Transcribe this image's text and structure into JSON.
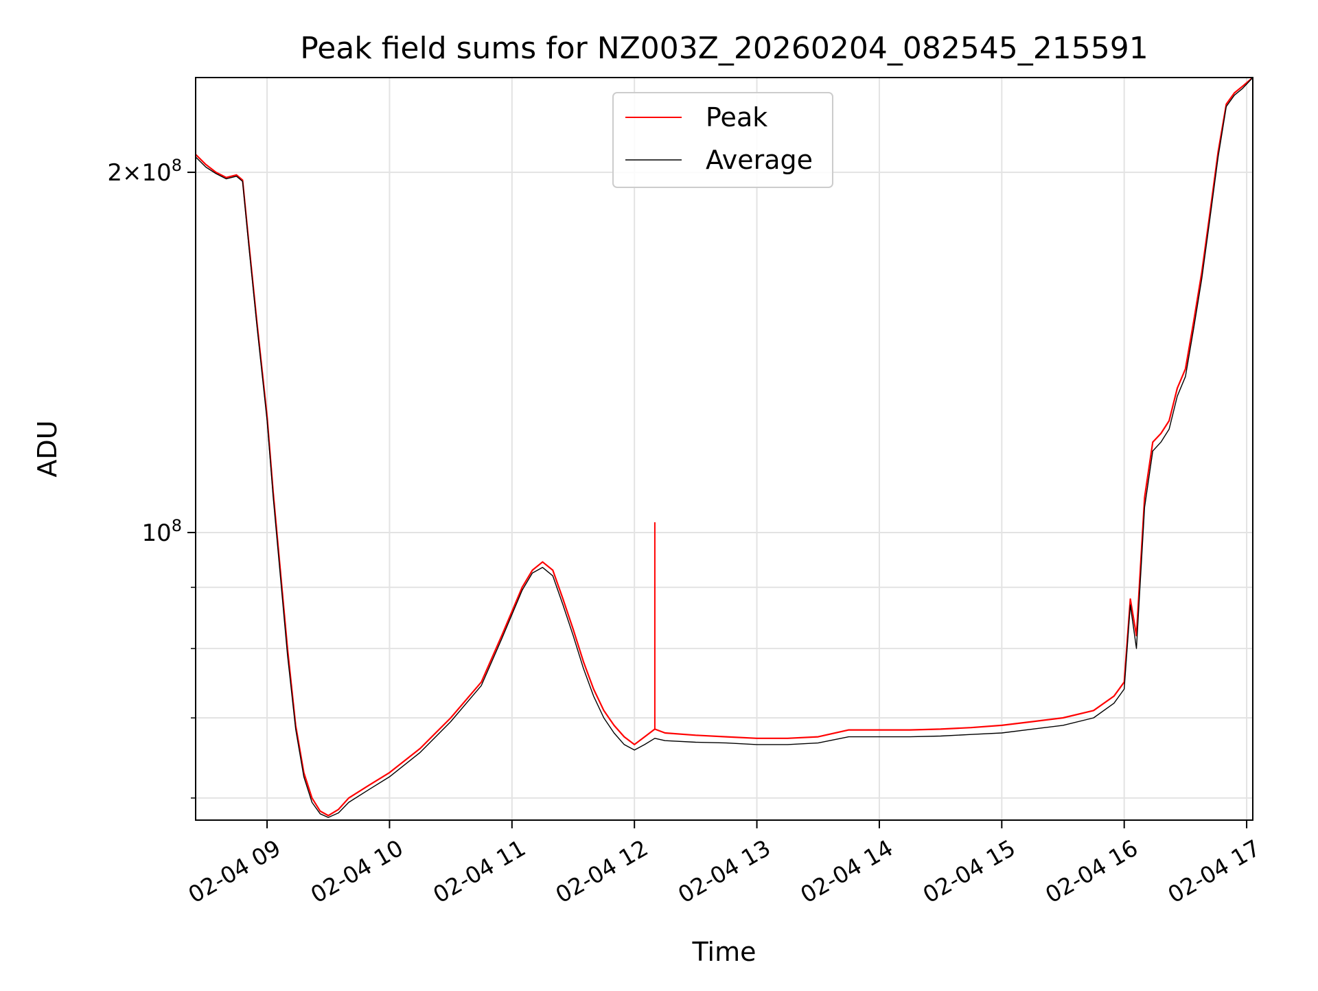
{
  "chart_data": {
    "type": "line",
    "title": "Peak field sums for NZ003Z_20260204_082545_215591",
    "xlabel": "Time",
    "ylabel": "ADU",
    "yscale": "log",
    "grid": true,
    "legend_position": "upper center",
    "xlim": [
      "2026-02-04 08:25",
      "2026-02-04 17:03"
    ],
    "ylim": [
      57500000,
      240000000
    ],
    "x_ticks": [
      {
        "value": "2026-02-04 09:00",
        "label": "02-04 09"
      },
      {
        "value": "2026-02-04 10:00",
        "label": "02-04 10"
      },
      {
        "value": "2026-02-04 11:00",
        "label": "02-04 11"
      },
      {
        "value": "2026-02-04 12:00",
        "label": "02-04 12"
      },
      {
        "value": "2026-02-04 13:00",
        "label": "02-04 13"
      },
      {
        "value": "2026-02-04 14:00",
        "label": "02-04 14"
      },
      {
        "value": "2026-02-04 15:00",
        "label": "02-04 15"
      },
      {
        "value": "2026-02-04 16:00",
        "label": "02-04 16"
      },
      {
        "value": "2026-02-04 17:00",
        "label": "02-04 17"
      }
    ],
    "y_major_ticks": [
      {
        "value": 100000000,
        "base": "10",
        "exp": "8",
        "coef": ""
      },
      {
        "value": 200000000,
        "base": "10",
        "exp": "8",
        "coef": "2×"
      }
    ],
    "y_minor_ticks": [
      60000000,
      70000000,
      80000000,
      90000000
    ],
    "series": [
      {
        "name": "Peak",
        "color": "#ff0000",
        "x": [
          "2026-02-04 08:25",
          "2026-02-04 08:30",
          "2026-02-04 08:35",
          "2026-02-04 08:40",
          "2026-02-04 08:45",
          "2026-02-04 08:48",
          "2026-02-04 08:51",
          "2026-02-04 08:55",
          "2026-02-04 09:00",
          "2026-02-04 09:03",
          "2026-02-04 09:06",
          "2026-02-04 09:10",
          "2026-02-04 09:14",
          "2026-02-04 09:18",
          "2026-02-04 09:22",
          "2026-02-04 09:26",
          "2026-02-04 09:30",
          "2026-02-04 09:35",
          "2026-02-04 09:40",
          "2026-02-04 09:50",
          "2026-02-04 10:00",
          "2026-02-04 10:15",
          "2026-02-04 10:30",
          "2026-02-04 10:45",
          "2026-02-04 10:55",
          "2026-02-04 11:05",
          "2026-02-04 11:10",
          "2026-02-04 11:15",
          "2026-02-04 11:20",
          "2026-02-04 11:25",
          "2026-02-04 11:30",
          "2026-02-04 11:35",
          "2026-02-04 11:40",
          "2026-02-04 11:45",
          "2026-02-04 11:50",
          "2026-02-04 11:55",
          "2026-02-04 12:00",
          "2026-02-04 12:05",
          "2026-02-04 12:10",
          "2026-02-04 12:15",
          "2026-02-04 12:30",
          "2026-02-04 12:45",
          "2026-02-04 13:00",
          "2026-02-04 13:15",
          "2026-02-04 13:30",
          "2026-02-04 13:45",
          "2026-02-04 14:00",
          "2026-02-04 14:15",
          "2026-02-04 14:30",
          "2026-02-04 14:45",
          "2026-02-04 15:00",
          "2026-02-04 15:15",
          "2026-02-04 15:30",
          "2026-02-04 15:45",
          "2026-02-04 15:55",
          "2026-02-04 16:00",
          "2026-02-04 16:03",
          "2026-02-04 16:06",
          "2026-02-04 16:10",
          "2026-02-04 16:14",
          "2026-02-04 16:18",
          "2026-02-04 16:22",
          "2026-02-04 16:26",
          "2026-02-04 16:30",
          "2026-02-04 16:34",
          "2026-02-04 16:38",
          "2026-02-04 16:42",
          "2026-02-04 16:46",
          "2026-02-04 16:50",
          "2026-02-04 16:54",
          "2026-02-04 16:58",
          "2026-02-04 17:03"
        ],
        "values": [
          207000000,
          203000000,
          200000000,
          198000000,
          199000000,
          197000000,
          175000000,
          150000000,
          125000000,
          108000000,
          95000000,
          80000000,
          69000000,
          63000000,
          60000000,
          58500000,
          58000000,
          58700000,
          60000000,
          61500000,
          63000000,
          66000000,
          70000000,
          75000000,
          82000000,
          90000000,
          93000000,
          94500000,
          93000000,
          88000000,
          83000000,
          78000000,
          74000000,
          71000000,
          69000000,
          67500000,
          66500000,
          67500000,
          68500000,
          68000000,
          67700000,
          67500000,
          67300000,
          67300000,
          67500000,
          68400000,
          68400000,
          68400000,
          68500000,
          68700000,
          69000000,
          69500000,
          70000000,
          71000000,
          73000000,
          75000000,
          88000000,
          82000000,
          107000000,
          119000000,
          121000000,
          124000000,
          132000000,
          137000000,
          150000000,
          165000000,
          185000000,
          208000000,
          228000000,
          233000000,
          236000000,
          240000000
        ],
        "spikes": [
          {
            "x": "2026-02-04 12:10",
            "value": 102000000
          }
        ]
      },
      {
        "name": "Average",
        "color": "#000000",
        "x": [
          "2026-02-04 08:25",
          "2026-02-04 08:30",
          "2026-02-04 08:35",
          "2026-02-04 08:40",
          "2026-02-04 08:45",
          "2026-02-04 08:48",
          "2026-02-04 08:51",
          "2026-02-04 08:55",
          "2026-02-04 09:00",
          "2026-02-04 09:03",
          "2026-02-04 09:06",
          "2026-02-04 09:10",
          "2026-02-04 09:14",
          "2026-02-04 09:18",
          "2026-02-04 09:22",
          "2026-02-04 09:26",
          "2026-02-04 09:30",
          "2026-02-04 09:35",
          "2026-02-04 09:40",
          "2026-02-04 09:50",
          "2026-02-04 10:00",
          "2026-02-04 10:15",
          "2026-02-04 10:30",
          "2026-02-04 10:45",
          "2026-02-04 10:55",
          "2026-02-04 11:05",
          "2026-02-04 11:10",
          "2026-02-04 11:15",
          "2026-02-04 11:20",
          "2026-02-04 11:25",
          "2026-02-04 11:30",
          "2026-02-04 11:35",
          "2026-02-04 11:40",
          "2026-02-04 11:45",
          "2026-02-04 11:50",
          "2026-02-04 11:55",
          "2026-02-04 12:00",
          "2026-02-04 12:05",
          "2026-02-04 12:10",
          "2026-02-04 12:15",
          "2026-02-04 12:30",
          "2026-02-04 12:45",
          "2026-02-04 13:00",
          "2026-02-04 13:15",
          "2026-02-04 13:30",
          "2026-02-04 13:45",
          "2026-02-04 14:00",
          "2026-02-04 14:15",
          "2026-02-04 14:30",
          "2026-02-04 14:45",
          "2026-02-04 15:00",
          "2026-02-04 15:15",
          "2026-02-04 15:30",
          "2026-02-04 15:45",
          "2026-02-04 15:55",
          "2026-02-04 16:00",
          "2026-02-04 16:03",
          "2026-02-04 16:06",
          "2026-02-04 16:10",
          "2026-02-04 16:14",
          "2026-02-04 16:18",
          "2026-02-04 16:22",
          "2026-02-04 16:26",
          "2026-02-04 16:30",
          "2026-02-04 16:34",
          "2026-02-04 16:38",
          "2026-02-04 16:42",
          "2026-02-04 16:46",
          "2026-02-04 16:50",
          "2026-02-04 16:54",
          "2026-02-04 16:58",
          "2026-02-04 17:03"
        ],
        "values": [
          206000000,
          202000000,
          199500000,
          197500000,
          198500000,
          196500000,
          174000000,
          149000000,
          124000000,
          107000000,
          94000000,
          79000000,
          68500000,
          62500000,
          59500000,
          58200000,
          57800000,
          58300000,
          59500000,
          61000000,
          62500000,
          65500000,
          69500000,
          74500000,
          81500000,
          89500000,
          92500000,
          93500000,
          92000000,
          87000000,
          82000000,
          77000000,
          73000000,
          70000000,
          68000000,
          66500000,
          65800000,
          66500000,
          67300000,
          67000000,
          66800000,
          66700000,
          66500000,
          66500000,
          66700000,
          67500000,
          67500000,
          67500000,
          67600000,
          67800000,
          68000000,
          68500000,
          69000000,
          70000000,
          72000000,
          74000000,
          87000000,
          80000000,
          105000000,
          117000000,
          119000000,
          122000000,
          130000000,
          135000000,
          148000000,
          163000000,
          183000000,
          206000000,
          227000000,
          232000000,
          235000000,
          240000000
        ]
      }
    ]
  }
}
